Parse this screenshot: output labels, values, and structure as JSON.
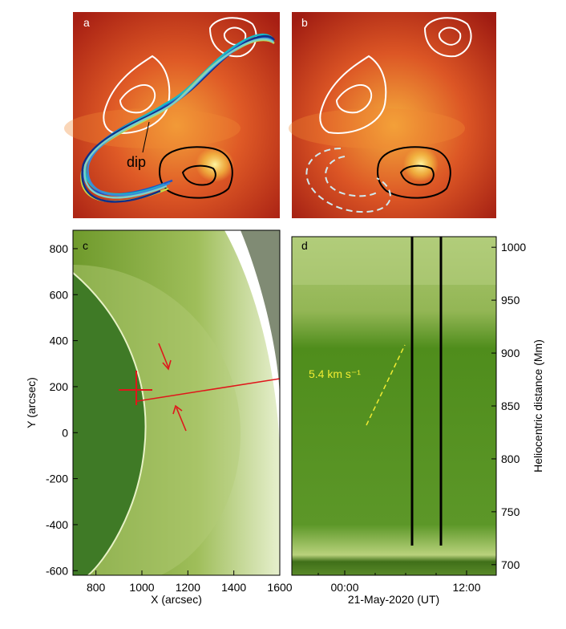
{
  "panels": [
    {
      "id": "a",
      "letter": "a",
      "annotation": "dip"
    },
    {
      "id": "b",
      "letter": "b"
    },
    {
      "id": "c",
      "letter": "c"
    },
    {
      "id": "d",
      "letter": "d",
      "annotation": "5.4 km s⁻¹"
    }
  ],
  "chart_data": [
    {
      "type": "scatter",
      "panel": "c",
      "xlabel": "X (arcsec)",
      "ylabel": "Y (arcsec)",
      "xlim": [
        700,
        1600
      ],
      "ylim": [
        -620,
        880
      ],
      "x_ticks": [
        800,
        1000,
        1200,
        1400,
        1600
      ],
      "y_ticks": [
        -600,
        -400,
        -200,
        0,
        200,
        400,
        600,
        800
      ],
      "grid": false
    },
    {
      "type": "line",
      "panel": "d",
      "xlabel": "21-May-2020 (UT)",
      "ylabel": "Heliocentric distance (Mm)",
      "x_tick_labels": [
        "00:00",
        "12:00"
      ],
      "y_ticks": [
        700,
        750,
        800,
        850,
        900,
        950,
        1000
      ],
      "ylim": [
        690,
        1010
      ],
      "grid": false,
      "annotation": "5.4 km s⁻¹"
    }
  ],
  "colors": {
    "hot_background": "#c7361f",
    "euv_green": "#4e8d17",
    "limb_red": "#e0161b",
    "flux_rope_blue": "#1f55c8",
    "annotation_yellow": "#f1ec33"
  }
}
